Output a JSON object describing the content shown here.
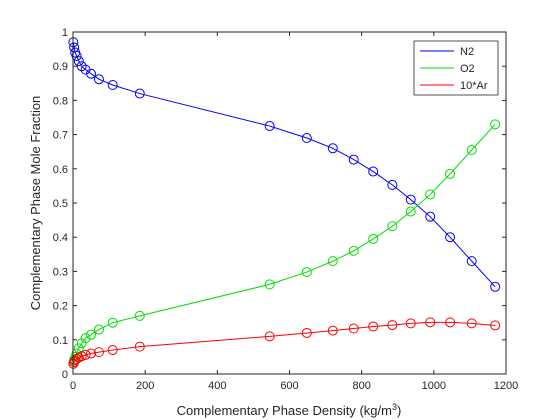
{
  "chart_data": {
    "type": "line",
    "xlabel": "Complementary Phase Density (kg/m",
    "xlabel_sup": "3",
    "xlabel_suffix": ")",
    "ylabel": "Complementary Phase Mole Fraction",
    "xlim": [
      0,
      1200
    ],
    "ylim": [
      0,
      1
    ],
    "xticks": [
      0,
      200,
      400,
      600,
      800,
      1000,
      1200
    ],
    "yticks": [
      0,
      0.1,
      0.2,
      0.3,
      0.4,
      0.5,
      0.6,
      0.7,
      0.8,
      0.9,
      1
    ],
    "grid": false,
    "legend_position": "top-right",
    "series": [
      {
        "name": "N2",
        "color": "#0000ff",
        "x": [
          1,
          3,
          6,
          10,
          16,
          24,
          35,
          50,
          72,
          110,
          185,
          545,
          648,
          720,
          778,
          832,
          885,
          936,
          990,
          1045,
          1105,
          1170
        ],
        "y": [
          0.97,
          0.955,
          0.94,
          0.93,
          0.915,
          0.9,
          0.89,
          0.878,
          0.862,
          0.845,
          0.82,
          0.725,
          0.69,
          0.66,
          0.627,
          0.592,
          0.553,
          0.51,
          0.46,
          0.4,
          0.33,
          0.255
        ]
      },
      {
        "name": "O2",
        "color": "#00dd00",
        "x": [
          1,
          3,
          6,
          10,
          16,
          24,
          35,
          50,
          72,
          110,
          185,
          545,
          648,
          720,
          778,
          832,
          885,
          936,
          990,
          1045,
          1105,
          1170
        ],
        "y": [
          0.03,
          0.04,
          0.05,
          0.06,
          0.075,
          0.09,
          0.105,
          0.115,
          0.13,
          0.15,
          0.17,
          0.262,
          0.298,
          0.33,
          0.36,
          0.395,
          0.432,
          0.475,
          0.525,
          0.585,
          0.655,
          0.73
        ]
      },
      {
        "name": "10*Ar",
        "color": "#ff0000",
        "x": [
          1,
          3,
          6,
          10,
          16,
          24,
          35,
          50,
          72,
          110,
          185,
          545,
          648,
          720,
          778,
          832,
          885,
          936,
          990,
          1045,
          1105,
          1170
        ],
        "y": [
          0.03,
          0.035,
          0.04,
          0.044,
          0.048,
          0.052,
          0.056,
          0.06,
          0.064,
          0.07,
          0.08,
          0.11,
          0.12,
          0.127,
          0.133,
          0.139,
          0.143,
          0.148,
          0.151,
          0.151,
          0.148,
          0.142
        ]
      }
    ]
  }
}
